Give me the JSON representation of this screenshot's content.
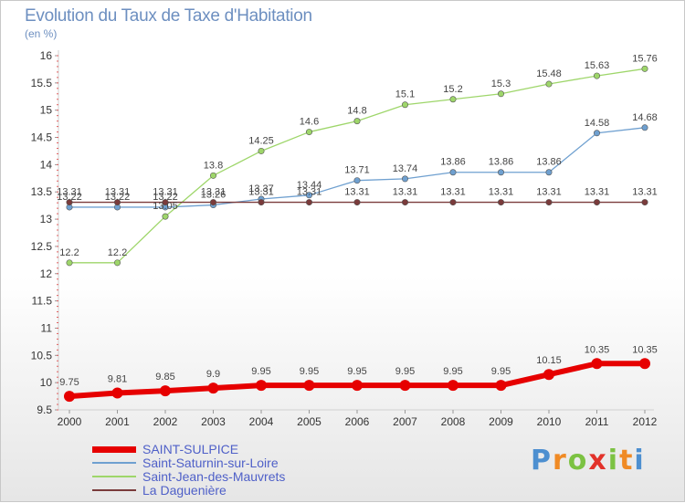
{
  "title": "Evolution du Taux de Taxe d'Habitation",
  "subtitle": "(en %)",
  "brand": {
    "text": "Proxiti",
    "letters": [
      "P",
      "r",
      "o",
      "x",
      "i",
      "t",
      "i"
    ],
    "colors": [
      "#4d8fd0",
      "#f08a24",
      "#7cc242",
      "#e2322a",
      "#7cc242",
      "#f08a24",
      "#4d8fd0"
    ]
  },
  "chart_data": {
    "type": "line",
    "title": "Evolution du Taux de Taxe d'Habitation",
    "subtitle": "(en %)",
    "x": [
      "2000",
      "2001",
      "2002",
      "2003",
      "2004",
      "2005",
      "2006",
      "2007",
      "2008",
      "2009",
      "2010",
      "2011",
      "2012"
    ],
    "y_ticks": [
      "9.5",
      "10",
      "10.5",
      "11",
      "11.5",
      "12",
      "12.5",
      "13",
      "13.5",
      "14",
      "14.5",
      "15",
      "15.5",
      "16"
    ],
    "ylim": [
      9.5,
      16
    ],
    "grid": false,
    "legend_position": "bottom-left",
    "series": [
      {
        "name": "SAINT-SULPICE",
        "color": "#e60000",
        "width": 6,
        "marker": 6,
        "values": [
          9.75,
          9.81,
          9.85,
          9.9,
          9.95,
          9.95,
          9.95,
          9.95,
          9.95,
          9.95,
          10.15,
          10.35,
          10.35
        ],
        "labels": [
          "9.75",
          "9.81",
          "9.85",
          "9.9",
          "9.95",
          "9.95",
          "9.95",
          "9.95",
          "9.95",
          "9.95",
          "10.15",
          "10.35",
          "10.35"
        ]
      },
      {
        "name": "Saint-Saturnin-sur-Loire",
        "color": "#6fa0d0",
        "width": 1.3,
        "marker": 3.2,
        "values": [
          13.22,
          13.22,
          13.22,
          13.26,
          13.37,
          13.44,
          13.71,
          13.74,
          13.86,
          13.86,
          13.86,
          14.58,
          14.68
        ],
        "labels": [
          "13.22",
          "13.22",
          "13.22",
          "13.26",
          "13.37",
          "13.44",
          "13.71",
          "13.74",
          "13.86",
          "13.86",
          "13.86",
          "14.58",
          "14.68"
        ]
      },
      {
        "name": "Saint-Jean-des-Mauvrets",
        "color": "#9ed66a",
        "width": 1.3,
        "marker": 3.2,
        "values": [
          12.2,
          12.2,
          13.05,
          13.8,
          14.25,
          14.6,
          14.8,
          15.1,
          15.2,
          15.3,
          15.48,
          15.63,
          15.76
        ],
        "labels": [
          "12.2",
          "12.2",
          "13.05",
          "13.8",
          "14.25",
          "14.6",
          "14.8",
          "15.1",
          "15.2",
          "15.3",
          "15.48",
          "15.63",
          "15.76"
        ]
      },
      {
        "name": "La Daguenière",
        "color": "#7a3b3b",
        "width": 1.3,
        "marker": 3.2,
        "values": [
          13.31,
          13.31,
          13.31,
          13.31,
          13.31,
          13.31,
          13.31,
          13.31,
          13.31,
          13.31,
          13.31,
          13.31,
          13.31
        ],
        "labels": [
          "13.31",
          "13.31",
          "13.31",
          "13.31",
          "13.31",
          "13.31",
          "13.31",
          "13.31",
          "13.31",
          "13.31",
          "13.31",
          "13.31",
          "13.31"
        ]
      }
    ]
  },
  "legend": [
    {
      "label": "SAINT-SULPICE",
      "color": "#e60000",
      "thickness": 7
    },
    {
      "label": "Saint-Saturnin-sur-Loire",
      "color": "#6fa0d0",
      "thickness": 2
    },
    {
      "label": "Saint-Jean-des-Mauvrets",
      "color": "#9ed66a",
      "thickness": 2
    },
    {
      "label": "La Daguenière",
      "color": "#7a3b3b",
      "thickness": 2
    }
  ]
}
